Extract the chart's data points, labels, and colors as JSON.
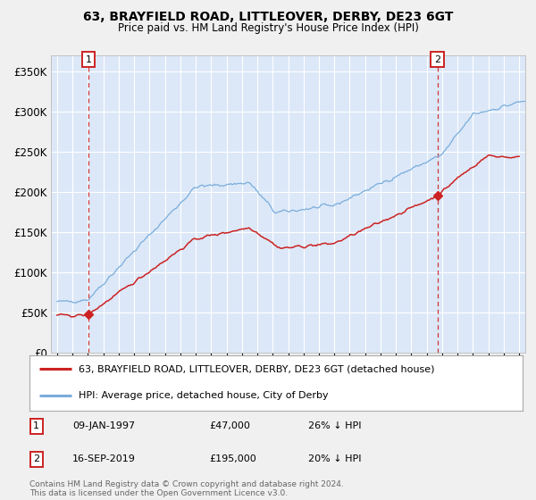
{
  "title": "63, BRAYFIELD ROAD, LITTLEOVER, DERBY, DE23 6GT",
  "subtitle": "Price paid vs. HM Land Registry's House Price Index (HPI)",
  "background_color": "#f0f0f0",
  "plot_bg_color": "#dce8f8",
  "grid_color": "#ffffff",
  "ylim": [
    0,
    370000
  ],
  "yticks": [
    0,
    50000,
    100000,
    150000,
    200000,
    250000,
    300000,
    350000
  ],
  "ytick_labels": [
    "£0",
    "£50K",
    "£100K",
    "£150K",
    "£200K",
    "£250K",
    "£300K",
    "£350K"
  ],
  "xlim_start": 1994.6,
  "xlim_end": 2025.4,
  "xticks": [
    1995,
    1996,
    1997,
    1998,
    1999,
    2000,
    2001,
    2002,
    2003,
    2004,
    2005,
    2006,
    2007,
    2008,
    2009,
    2010,
    2011,
    2012,
    2013,
    2014,
    2015,
    2016,
    2017,
    2018,
    2019,
    2020,
    2021,
    2022,
    2023,
    2024,
    2025
  ],
  "hpi_color": "#7aaddb",
  "price_color": "#cc2222",
  "marker_color": "#cc2222",
  "vline_color": "#cc2222",
  "sale1_year": 1997.03,
  "sale1_price": 47000,
  "sale1_label": "1",
  "sale1_date": "09-JAN-1997",
  "sale1_amount": "£47,000",
  "sale1_hpi": "26% ↓ HPI",
  "sale2_year": 2019.71,
  "sale2_price": 195000,
  "sale2_label": "2",
  "sale2_date": "16-SEP-2019",
  "sale2_amount": "£195,000",
  "sale2_hpi": "20% ↓ HPI",
  "legend_line1": "63, BRAYFIELD ROAD, LITTLEOVER, DERBY, DE23 6GT (detached house)",
  "legend_line2": "HPI: Average price, detached house, City of Derby",
  "footer": "Contains HM Land Registry data © Crown copyright and database right 2024.\nThis data is licensed under the Open Government Licence v3.0."
}
